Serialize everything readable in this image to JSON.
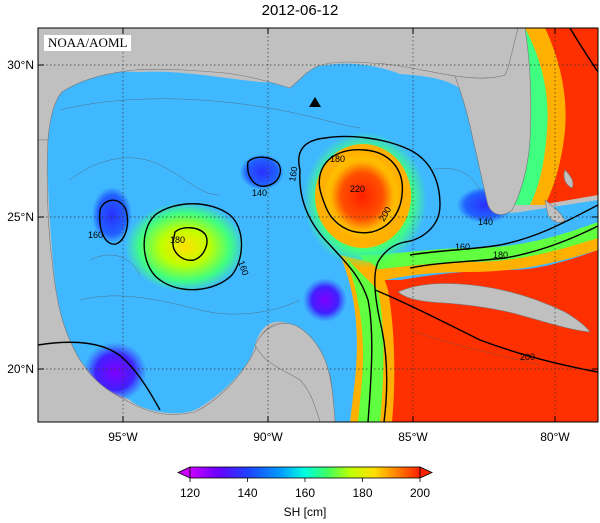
{
  "title": "2012-06-12",
  "badge": "NOAA/AOML",
  "lat_ticks": [
    "30°N",
    "25°N",
    "20°N"
  ],
  "lon_ticks": [
    "95°W",
    "90°W",
    "85°W",
    "80°W"
  ],
  "contour_labels": [
    "180",
    "140",
    "160",
    "180",
    "160",
    "220",
    "200",
    "160",
    "140",
    "160",
    "180",
    "200"
  ],
  "colorbar": {
    "label": "SH [cm]",
    "ticks": [
      "120",
      "140",
      "160",
      "180",
      "200"
    ],
    "range": [
      120,
      200
    ],
    "colors": [
      "#cc00ff",
      "#6a00ff",
      "#1e40ff",
      "#00a0ff",
      "#00ffe0",
      "#40ff60",
      "#c0ff00",
      "#ffe000",
      "#ff8000",
      "#ff2000"
    ]
  },
  "colors": {
    "land": "#c0c0c0",
    "ocean_fill": "#3fb8ff"
  }
}
